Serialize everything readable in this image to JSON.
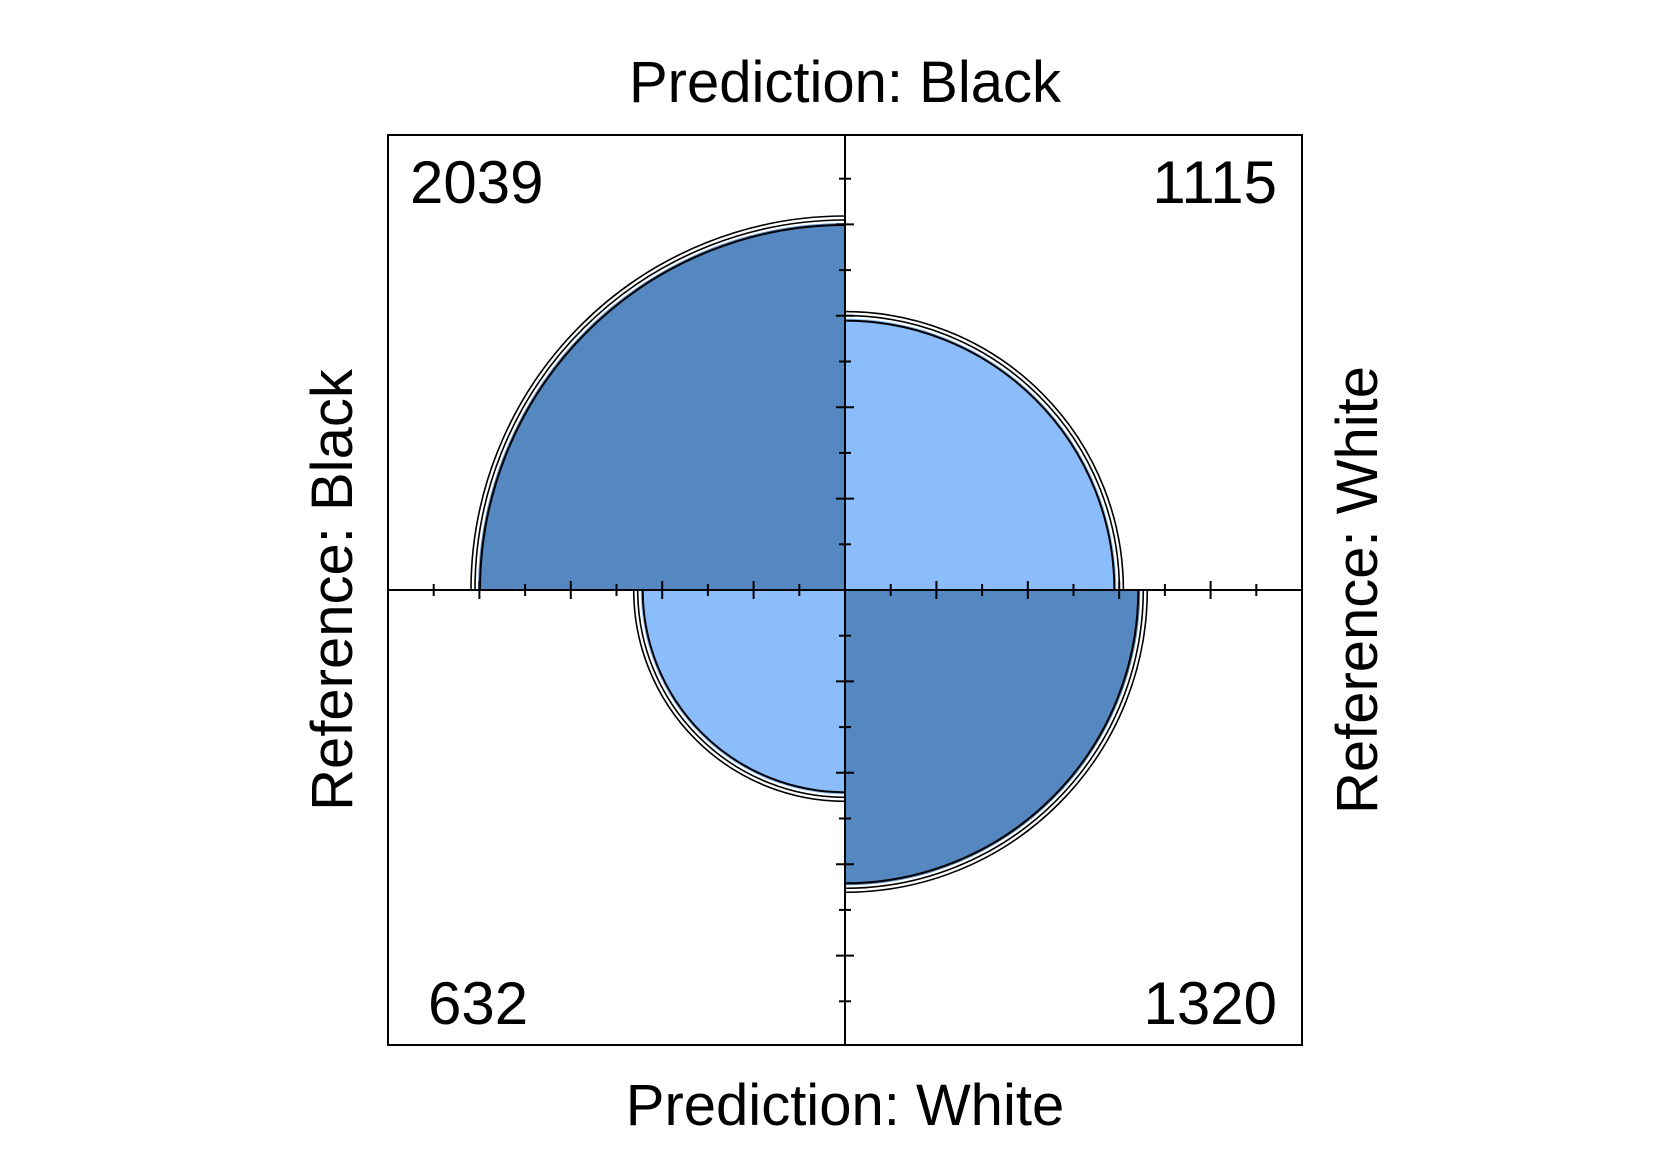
{
  "chart_data": {
    "type": "fourfold",
    "labels": {
      "top": "Prediction: Black",
      "bottom": "Prediction: White",
      "left": "Reference: Black",
      "right": "Reference: White"
    },
    "cells": [
      {
        "position": "top-left",
        "value": 2039,
        "label": "2039",
        "fill_type": "agreement"
      },
      {
        "position": "top-right",
        "value": 1115,
        "label": "1115",
        "fill_type": "disagreement"
      },
      {
        "position": "bottom-left",
        "value": 632,
        "label": "632",
        "fill_type": "disagreement"
      },
      {
        "position": "bottom-right",
        "value": 1320,
        "label": "1320",
        "fill_type": "agreement"
      }
    ],
    "confidence_rings": true
  },
  "colors": {
    "agreement": "#5588c0",
    "disagreement": "#8bbdfd",
    "outline": "#000000",
    "background": "#ffffff"
  }
}
